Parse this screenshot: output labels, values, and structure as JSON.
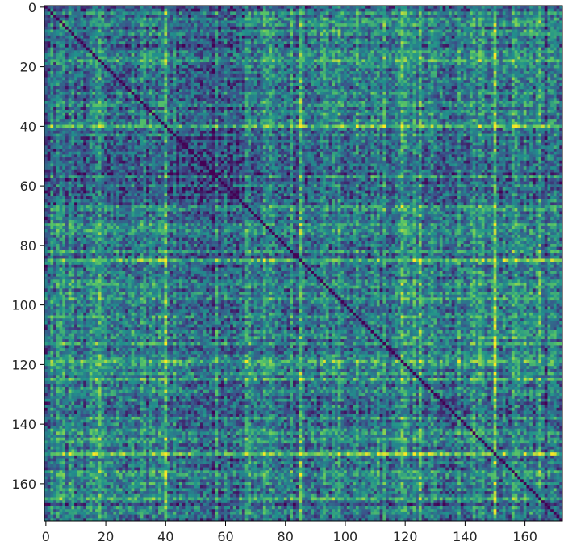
{
  "chart_data": {
    "type": "heatmap",
    "title": "",
    "xlabel": "",
    "ylabel": "",
    "n": 173,
    "xlim": [
      -0.5,
      172.5
    ],
    "ylim": [
      172.5,
      -0.5
    ],
    "x_ticks": [
      "0",
      "20",
      "40",
      "60",
      "80",
      "100",
      "120",
      "140",
      "160"
    ],
    "y_ticks": [
      "0",
      "20",
      "40",
      "60",
      "80",
      "100",
      "120",
      "140",
      "160"
    ],
    "colormap": "viridis",
    "colors": {
      "colormap_stops": [
        "#440154",
        "#3b528b",
        "#21918c",
        "#5ec962",
        "#fde725"
      ],
      "axis": "#000000",
      "background": "#ffffff"
    },
    "diagonal_value": 0.0,
    "value_range": [
      0,
      1
    ],
    "dark_bands": [
      18,
      44,
      56,
      95,
      119,
      152,
      167
    ],
    "bright_bands": [
      18,
      40,
      85,
      119,
      125,
      150,
      165
    ]
  }
}
